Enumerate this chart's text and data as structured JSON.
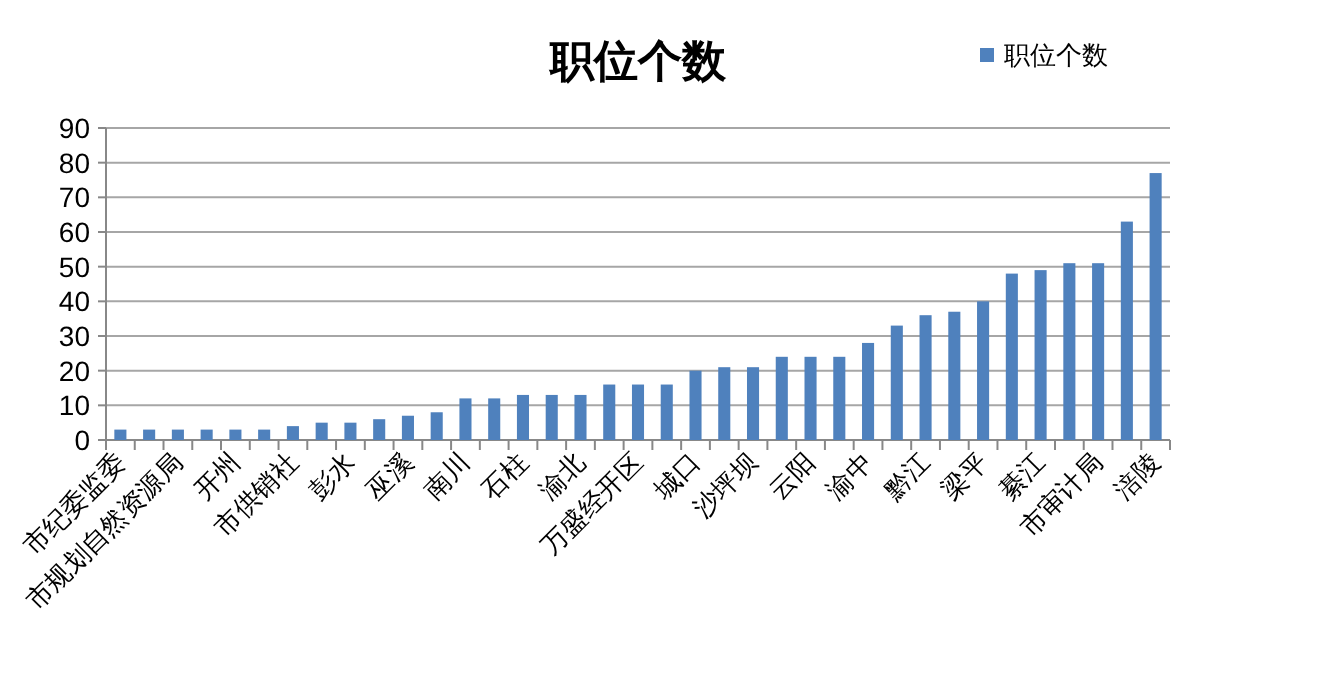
{
  "chart_data": {
    "type": "bar",
    "title": "职位个数",
    "categories": [
      "市纪委监委",
      null,
      "市规划自然资源局",
      null,
      "开州",
      null,
      "市供销社",
      null,
      "彭水",
      null,
      "巫溪",
      null,
      "南川",
      null,
      "石柱",
      null,
      "渝北",
      null,
      "万盛经开区",
      null,
      "城口",
      null,
      "沙坪坝",
      null,
      "云阳",
      null,
      "渝中",
      null,
      "黔江",
      null,
      "梁平",
      null,
      "綦江",
      null,
      "市审计局",
      null,
      "涪陵"
    ],
    "series": [
      {
        "name": "职位个数",
        "color": "#4f81bd",
        "values": [
          3,
          3,
          3,
          3,
          3,
          3,
          4,
          5,
          5,
          6,
          7,
          8,
          12,
          12,
          13,
          13,
          13,
          16,
          16,
          16,
          20,
          21,
          21,
          24,
          24,
          24,
          28,
          33,
          36,
          37,
          40,
          48,
          49,
          51,
          51,
          63,
          77
        ]
      }
    ],
    "ylim": [
      0,
      90
    ],
    "yticks": [
      0,
      10,
      20,
      30,
      40,
      50,
      60,
      70,
      80,
      90
    ],
    "grid": "y",
    "legend": "top right"
  }
}
